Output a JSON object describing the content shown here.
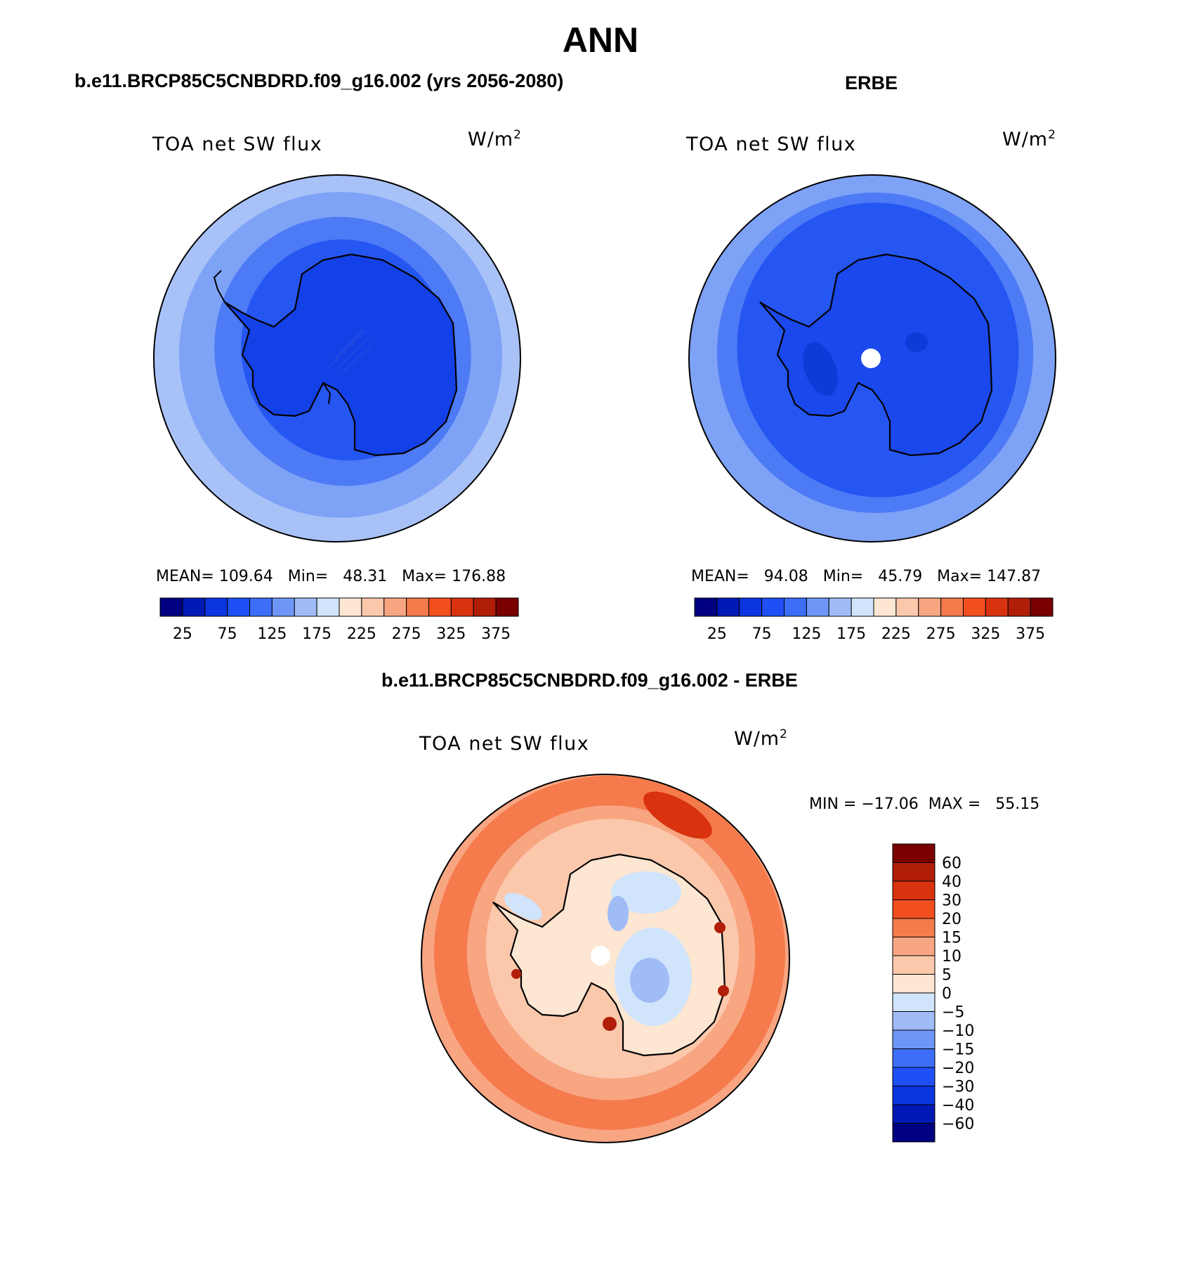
{
  "main_title": "ANN",
  "panels": [
    {
      "case_title": "b.e11.BRCP85C5CNBDRD.f09_g16.002 (yrs 2056-2080)",
      "variable": "TOA net SW flux",
      "units_base": "W/m",
      "units_exp": "2",
      "stats": "MEAN= 109.64   Min=   48.31   Max= 176.88"
    },
    {
      "case_title": "ERBE",
      "variable": "TOA net SW flux",
      "units_base": "W/m",
      "units_exp": "2",
      "stats": "MEAN=   94.08   Min=   45.79   Max= 147.87"
    },
    {
      "case_title": "b.e11.BRCP85C5CNBDRD.f09_g16.002 - ERBE",
      "variable": "TOA net SW flux",
      "units_base": "W/m",
      "units_exp": "2",
      "stats": "MIN = −17.06  MAX =   55.15"
    }
  ],
  "chart_data": [
    {
      "type": "heatmap",
      "projection": "south polar stereographic",
      "title": "TOA net SW flux",
      "units": "W/m2",
      "mean": 109.64,
      "min": 48.31,
      "max": 176.88,
      "colorbar": {
        "orientation": "horizontal",
        "tick_labels": [
          "25",
          "75",
          "125",
          "175",
          "225",
          "275",
          "325",
          "375"
        ],
        "colors": [
          "#000080",
          "#0019b4",
          "#0a35e0",
          "#1e50f5",
          "#3c6ef7",
          "#6e96f7",
          "#a0bcf7",
          "#d0e4fb",
          "#fde6d2",
          "#fbc8ac",
          "#f8a582",
          "#f57a4c",
          "#f24e1e",
          "#d8320f",
          "#b01e08",
          "#7a0000"
        ]
      }
    },
    {
      "type": "heatmap",
      "projection": "south polar stereographic",
      "title": "TOA net SW flux",
      "units": "W/m2",
      "mean": 94.08,
      "min": 45.79,
      "max": 147.87,
      "colorbar": {
        "orientation": "horizontal",
        "tick_labels": [
          "25",
          "75",
          "125",
          "175",
          "225",
          "275",
          "325",
          "375"
        ],
        "colors": [
          "#000080",
          "#0019b4",
          "#0a35e0",
          "#1e50f5",
          "#3c6ef7",
          "#6e96f7",
          "#a0bcf7",
          "#d0e4fb",
          "#fde6d2",
          "#fbc8ac",
          "#f8a582",
          "#f57a4c",
          "#f24e1e",
          "#d8320f",
          "#b01e08",
          "#7a0000"
        ]
      }
    },
    {
      "type": "heatmap",
      "projection": "south polar stereographic",
      "title": "TOA net SW flux",
      "units": "W/m2",
      "min": -17.06,
      "max": 55.15,
      "colorbar": {
        "orientation": "vertical",
        "tick_labels": [
          "60",
          "40",
          "30",
          "20",
          "15",
          "10",
          "5",
          "0",
          "−5",
          "−10",
          "−15",
          "−20",
          "−30",
          "−40",
          "−60"
        ],
        "colors": [
          "#7a0000",
          "#b01e08",
          "#d8320f",
          "#f24e1e",
          "#f57a4c",
          "#f8a582",
          "#fbc8ac",
          "#fde6d2",
          "#d0e4fb",
          "#a0bcf7",
          "#6e96f7",
          "#3c6ef7",
          "#1e50f5",
          "#0a35e0",
          "#0019b4",
          "#000080"
        ]
      }
    }
  ]
}
